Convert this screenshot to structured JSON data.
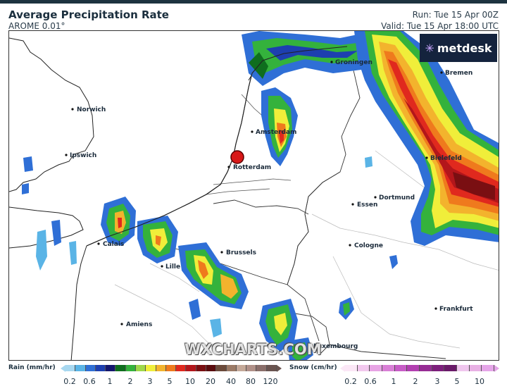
{
  "header": {
    "title": "Average Precipitation Rate",
    "model": "AROME 0.01°",
    "run": "Run: Tue 15 Apr 00Z",
    "valid": "Valid: Tue 15 Apr 18:00 UTC"
  },
  "logo": {
    "text": "metdesk",
    "icon": "asterisk-icon"
  },
  "watermark": "WXCHARTS.COM",
  "map": {
    "cities": [
      {
        "name": "Groningen"
      },
      {
        "name": "Bremen"
      },
      {
        "name": "Norwich"
      },
      {
        "name": "Amsterdam"
      },
      {
        "name": "Ipswich"
      },
      {
        "name": "Rotterdam"
      },
      {
        "name": "Bielefeld"
      },
      {
        "name": "Dortmund"
      },
      {
        "name": "Essen"
      },
      {
        "name": "Calais"
      },
      {
        "name": "Cologne"
      },
      {
        "name": "Brussels"
      },
      {
        "name": "Lille"
      },
      {
        "name": "Frankfurt"
      },
      {
        "name": "Amiens"
      },
      {
        "name": "Luxembourg"
      }
    ],
    "marker": {
      "type": "location-marker",
      "color": "#d81818"
    }
  },
  "legend": {
    "rain": {
      "label": "Rain (mm/hr)",
      "ticks": [
        "0.2",
        "0.6",
        "1",
        "2",
        "3",
        "5",
        "10",
        "20",
        "40",
        "80",
        "120"
      ],
      "colors": [
        "#a8d8f0",
        "#5ab4e6",
        "#2f6fd6",
        "#1d3fb0",
        "#14176e",
        "#0f6e1e",
        "#34b23c",
        "#9fd84a",
        "#f0ee3a",
        "#f3b32d",
        "#ef7a1d",
        "#e0291e",
        "#b3161b",
        "#7a0f12",
        "#5a0c0e",
        "#6b4a3a",
        "#9b7a66",
        "#c4a898",
        "#b09088",
        "#8a6e6a",
        "#6a5450"
      ]
    },
    "snow": {
      "label": "Snow (cm/hr)",
      "ticks": [
        "0.2",
        "0.6",
        "1",
        "2",
        "3",
        "5",
        "10"
      ],
      "colors": [
        "#fbe7f6",
        "#f2c8ee",
        "#e7a3e4",
        "#d97fd6",
        "#c75cc6",
        "#b23fb0",
        "#962c94",
        "#7d1f7c",
        "#6a1a69",
        "#f0c6ee",
        "#e8b0e4",
        "#e5a5e8"
      ]
    }
  }
}
